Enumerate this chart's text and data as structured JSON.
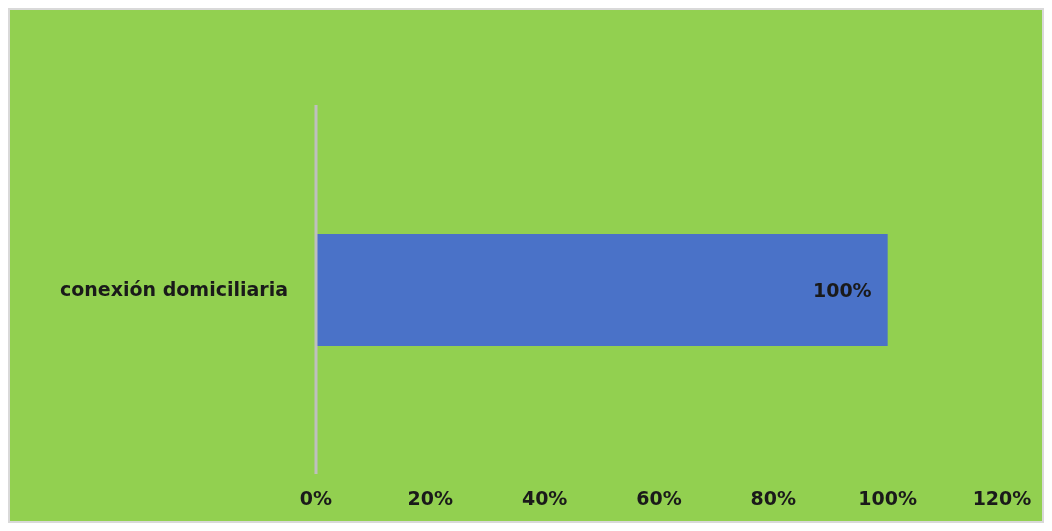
{
  "chart_data": {
    "type": "bar",
    "orientation": "horizontal",
    "categories": [
      "conexión domiciliaria"
    ],
    "values": [
      100
    ],
    "color": "#4a72c8",
    "value_labels": [
      "100%"
    ],
    "xlim": [
      0,
      120
    ],
    "xticks": [
      {
        "value": 0,
        "label": "0%"
      },
      {
        "value": 20,
        "label": "20%"
      },
      {
        "value": 40,
        "label": "40%"
      },
      {
        "value": 60,
        "label": "60%"
      },
      {
        "value": 80,
        "label": "80%"
      },
      {
        "value": 100,
        "label": "100%"
      },
      {
        "value": 120,
        "label": "120%"
      }
    ],
    "grid": false,
    "legend": false
  }
}
